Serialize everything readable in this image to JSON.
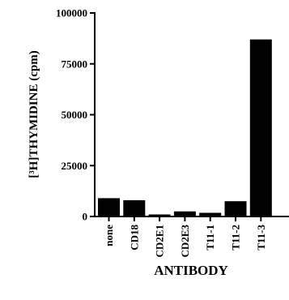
{
  "chart_data": {
    "type": "bar",
    "ylabel": "[³H]THYMIDINE (cpm)",
    "xlabel": "ANTIBODY",
    "categories": [
      "none",
      "CD18",
      "CD2E1",
      "CD2E3",
      "T11-1",
      "T11-2",
      "T11-3"
    ],
    "values": [
      9000,
      8000,
      1000,
      2500,
      1800,
      7500,
      87000
    ],
    "ylim": [
      0,
      100000
    ],
    "yticks": [
      0,
      25000,
      50000,
      75000,
      100000
    ],
    "ytick_labels": [
      "0",
      "25000",
      "50000",
      "75000",
      "100000"
    ],
    "grid": false,
    "legend": "none",
    "bar_color": "#000000"
  }
}
